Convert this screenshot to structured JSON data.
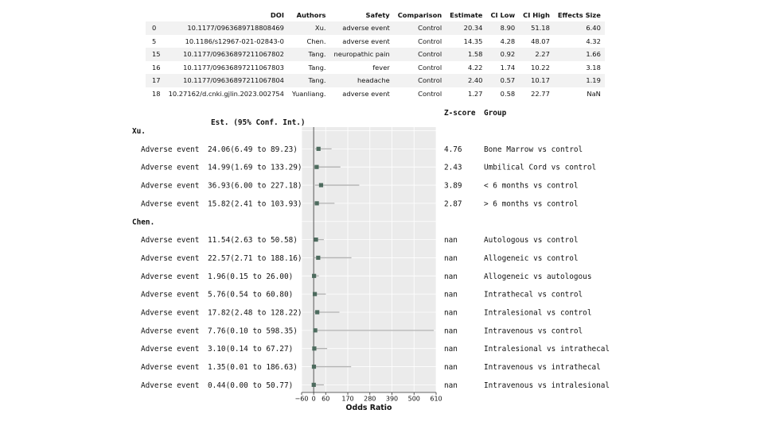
{
  "table": {
    "columns": [
      "",
      "DOI",
      "Authors",
      "Safety",
      "Comparison",
      "Estimate",
      "CI Low",
      "CI High",
      "Effects Size"
    ],
    "rows": [
      [
        "0",
        "10.1177/0963689718808469",
        "Xu.",
        "adverse event",
        "Control",
        "20.34",
        "8.90",
        "51.18",
        "6.40"
      ],
      [
        "5",
        "10.1186/s12967-021-02843-0",
        "Chen.",
        "adverse event",
        "Control",
        "14.35",
        "4.28",
        "48.07",
        "4.32"
      ],
      [
        "15",
        "10.1177/09636897211067802",
        "Tang.",
        "neuropathic pain",
        "Control",
        "1.58",
        "0.92",
        "2.27",
        "1.66"
      ],
      [
        "16",
        "10.1177/09636897211067803",
        "Tang.",
        "fever",
        "Control",
        "4.22",
        "1.74",
        "10.22",
        "3.18"
      ],
      [
        "17",
        "10.1177/09636897211067804",
        "Tang.",
        "headache",
        "Control",
        "2.40",
        "0.57",
        "10.17",
        "1.19"
      ],
      [
        "18",
        "10.27162/d.cnki.gjlin.2023.002754",
        "Yuanliang.",
        "adverse event",
        "Control",
        "1.27",
        "0.58",
        "22.77",
        "NaN"
      ]
    ]
  },
  "chart_data": {
    "type": "forest",
    "xlabel": "Odds Ratio",
    "xlim": [
      -60,
      610
    ],
    "xticks": [
      -60,
      0,
      60,
      170,
      280,
      390,
      500,
      610
    ],
    "headers": {
      "est": "Est. (95% Conf. Int.)",
      "z": "Z-score",
      "group": "Group"
    },
    "colors": {
      "marker": "#4d6b5e",
      "ci": "#b3b3b3",
      "background": "#ebebeb",
      "ref_line": "#555555"
    },
    "groups": [
      {
        "label": "Xu.",
        "rows": [
          {
            "label": "Adverse event",
            "est_text": "24.06(6.49 to  89.23)",
            "est": 24.06,
            "low": 6.49,
            "high": 89.23,
            "z": "4.76",
            "group": "Bone Marrow vs control"
          },
          {
            "label": "Adverse event",
            "est_text": "14.99(1.69 to 133.29)",
            "est": 14.99,
            "low": 1.69,
            "high": 133.29,
            "z": "2.43",
            "group": "Umbilical Cord vs control"
          },
          {
            "label": "Adverse event",
            "est_text": "36.93(6.00 to 227.18)",
            "est": 36.93,
            "low": 6.0,
            "high": 227.18,
            "z": "3.89",
            "group": "< 6 months vs control"
          },
          {
            "label": "Adverse event",
            "est_text": "15.82(2.41 to 103.93)",
            "est": 15.82,
            "low": 2.41,
            "high": 103.93,
            "z": "2.87",
            "group": "> 6 months vs control"
          }
        ]
      },
      {
        "label": "Chen.",
        "rows": [
          {
            "label": "Adverse event",
            "est_text": "11.54(2.63 to  50.58)",
            "est": 11.54,
            "low": 2.63,
            "high": 50.58,
            "z": "nan",
            "group": "Autologous vs control"
          },
          {
            "label": "Adverse event",
            "est_text": "22.57(2.71 to 188.16)",
            "est": 22.57,
            "low": 2.71,
            "high": 188.16,
            "z": "nan",
            "group": "Allogeneic vs control"
          },
          {
            "label": "Adverse event",
            "est_text": " 1.96(0.15 to  26.00)",
            "est": 1.96,
            "low": 0.15,
            "high": 26.0,
            "z": "nan",
            "group": "Allogeneic vs autologous"
          },
          {
            "label": "Adverse event",
            "est_text": " 5.76(0.54 to  60.80)",
            "est": 5.76,
            "low": 0.54,
            "high": 60.8,
            "z": "nan",
            "group": "Intrathecal vs control"
          },
          {
            "label": "Adverse event",
            "est_text": "17.82(2.48 to 128.22)",
            "est": 17.82,
            "low": 2.48,
            "high": 128.22,
            "z": "nan",
            "group": "Intralesional vs control"
          },
          {
            "label": "Adverse event",
            "est_text": " 7.76(0.10 to 598.35)",
            "est": 7.76,
            "low": 0.1,
            "high": 598.35,
            "z": "nan",
            "group": "Intravenous vs control"
          },
          {
            "label": "Adverse event",
            "est_text": " 3.10(0.14 to  67.27)",
            "est": 3.1,
            "low": 0.14,
            "high": 67.27,
            "z": "nan",
            "group": "Intralesional vs intrathecal"
          },
          {
            "label": "Adverse event",
            "est_text": " 1.35(0.01 to 186.63)",
            "est": 1.35,
            "low": 0.01,
            "high": 186.63,
            "z": "nan",
            "group": "Intravenous vs intrathecal"
          },
          {
            "label": "Adverse event",
            "est_text": " 0.44(0.00 to  50.77)",
            "est": 0.44,
            "low": 0.0,
            "high": 50.77,
            "z": "nan",
            "group": "Intravenous vs intralesional"
          }
        ]
      }
    ]
  }
}
